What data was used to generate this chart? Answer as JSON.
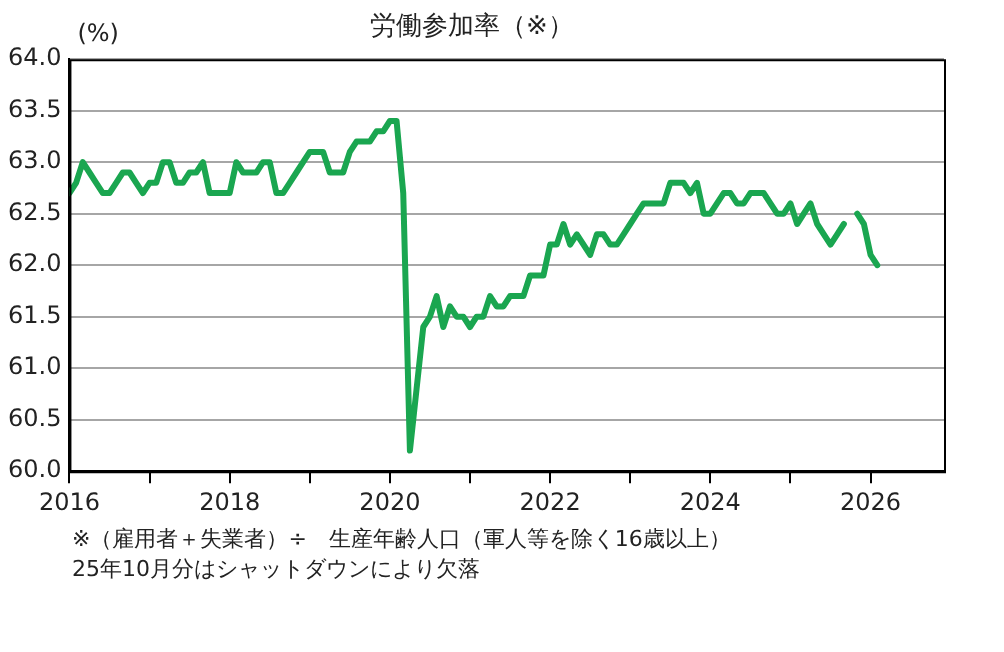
{
  "chart_data": {
    "type": "line",
    "title": "労働参加率（※）",
    "ylabel": "(%)",
    "annotations": [
      "※（雇用者＋失業者）÷　生産年齢人口（軍人等を除く16歳以上）",
      "25年10月分はシャットダウンにより欠落"
    ],
    "x": [
      "2016-01",
      "2016-02",
      "2016-03",
      "2016-04",
      "2016-05",
      "2016-06",
      "2016-07",
      "2016-08",
      "2016-09",
      "2016-10",
      "2016-11",
      "2016-12",
      "2017-01",
      "2017-02",
      "2017-03",
      "2017-04",
      "2017-05",
      "2017-06",
      "2017-07",
      "2017-08",
      "2017-09",
      "2017-10",
      "2017-11",
      "2017-12",
      "2018-01",
      "2018-02",
      "2018-03",
      "2018-04",
      "2018-05",
      "2018-06",
      "2018-07",
      "2018-08",
      "2018-09",
      "2018-10",
      "2018-11",
      "2018-12",
      "2019-01",
      "2019-02",
      "2019-03",
      "2019-04",
      "2019-05",
      "2019-06",
      "2019-07",
      "2019-08",
      "2019-09",
      "2019-10",
      "2019-11",
      "2019-12",
      "2020-01",
      "2020-02",
      "2020-03",
      "2020-04",
      "2020-05",
      "2020-06",
      "2020-07",
      "2020-08",
      "2020-09",
      "2020-10",
      "2020-11",
      "2020-12",
      "2021-01",
      "2021-02",
      "2021-03",
      "2021-04",
      "2021-05",
      "2021-06",
      "2021-07",
      "2021-08",
      "2021-09",
      "2021-10",
      "2021-11",
      "2021-12",
      "2022-01",
      "2022-02",
      "2022-03",
      "2022-04",
      "2022-05",
      "2022-06",
      "2022-07",
      "2022-08",
      "2022-09",
      "2022-10",
      "2022-11",
      "2022-12",
      "2023-01",
      "2023-02",
      "2023-03",
      "2023-04",
      "2023-05",
      "2023-06",
      "2023-07",
      "2023-08",
      "2023-09",
      "2023-10",
      "2023-11",
      "2023-12",
      "2024-01",
      "2024-02",
      "2024-03",
      "2024-04",
      "2024-05",
      "2024-06",
      "2024-07",
      "2024-08",
      "2024-09",
      "2024-10",
      "2024-11",
      "2024-12",
      "2025-01",
      "2025-02",
      "2025-03",
      "2025-04",
      "2025-05",
      "2025-06",
      "2025-07",
      "2025-08",
      "2025-09",
      "2025-10",
      "2025-11",
      "2025-12",
      "2026-01",
      "2026-02"
    ],
    "series": [
      {
        "color": "#1aa650",
        "values": [
          62.7,
          62.8,
          63.0,
          62.9,
          62.8,
          62.7,
          62.7,
          62.8,
          62.9,
          62.9,
          62.8,
          62.7,
          62.8,
          62.8,
          63.0,
          63.0,
          62.8,
          62.8,
          62.9,
          62.9,
          63.0,
          62.7,
          62.7,
          62.7,
          62.7,
          63.0,
          62.9,
          62.9,
          62.9,
          63.0,
          63.0,
          62.7,
          62.7,
          62.8,
          62.9,
          63.0,
          63.1,
          63.1,
          63.1,
          62.9,
          62.9,
          62.9,
          63.1,
          63.2,
          63.2,
          63.2,
          63.3,
          63.3,
          63.4,
          63.4,
          62.7,
          60.2,
          60.8,
          61.4,
          61.5,
          61.7,
          61.4,
          61.6,
          61.5,
          61.5,
          61.4,
          61.5,
          61.5,
          61.7,
          61.6,
          61.6,
          61.7,
          61.7,
          61.7,
          61.9,
          61.9,
          61.9,
          62.2,
          62.2,
          62.4,
          62.2,
          62.3,
          62.2,
          62.1,
          62.3,
          62.3,
          62.2,
          62.2,
          62.3,
          62.4,
          62.5,
          62.6,
          62.6,
          62.6,
          62.6,
          62.8,
          62.8,
          62.8,
          62.7,
          62.8,
          62.5,
          62.5,
          62.6,
          62.7,
          62.7,
          62.6,
          62.6,
          62.7,
          62.7,
          62.7,
          62.6,
          62.5,
          62.5,
          62.6,
          62.4,
          62.5,
          62.6,
          62.4,
          62.3,
          62.2,
          62.3,
          62.4,
          null,
          62.5,
          62.4,
          62.1,
          62.0
        ]
      }
    ],
    "xlim": [
      "2016-01",
      "2026-12"
    ],
    "xticks": [
      "2016",
      {
        "value": "2017",
        "label": null
      },
      "2018",
      {
        "value": "2019",
        "label": null
      },
      "2020",
      {
        "value": "2021",
        "label": null
      },
      "2022",
      {
        "value": "2023",
        "label": null
      },
      "2024",
      {
        "value": "2025",
        "label": null
      },
      "2026"
    ],
    "ylim": [
      60,
      64
    ],
    "yticks": [
      {
        "value": 60,
        "label": "60.0"
      },
      {
        "value": 60.5,
        "label": "60.5"
      },
      {
        "value": 61,
        "label": "61.0"
      },
      {
        "value": 61.5,
        "label": "61.5"
      },
      {
        "value": 62,
        "label": "62.0"
      },
      {
        "value": 62.5,
        "label": "62.5"
      },
      {
        "value": 63,
        "label": "63.0"
      },
      {
        "value": 63.5,
        "label": "63.5"
      },
      {
        "value": 64,
        "label": "64.0"
      }
    ],
    "grid": "y",
    "legend": false,
    "marker": "none",
    "line_style": "solid"
  }
}
